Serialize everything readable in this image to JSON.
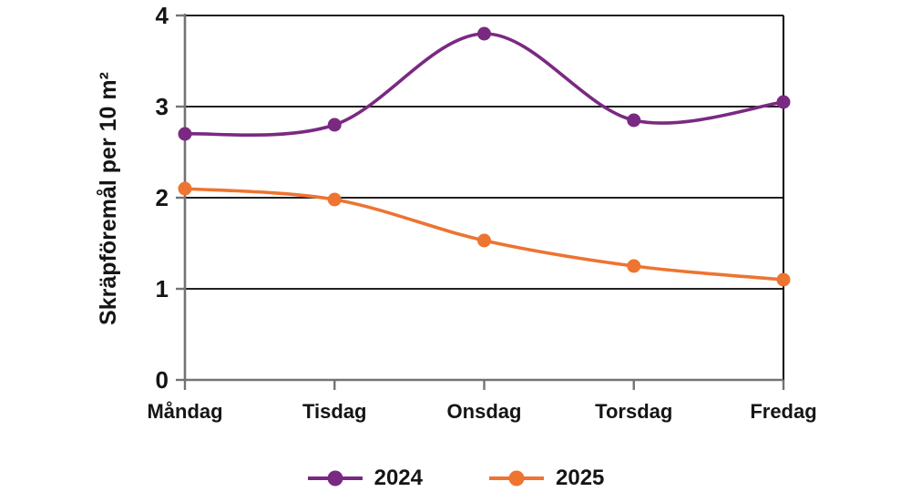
{
  "chart_data": {
    "type": "line",
    "categories": [
      "Måndag",
      "Tisdag",
      "Onsdag",
      "Torsdag",
      "Fredag"
    ],
    "series": [
      {
        "name": "2024",
        "color": "#7A2982",
        "values": [
          2.7,
          2.8,
          3.8,
          2.85,
          3.05
        ]
      },
      {
        "name": "2025",
        "color": "#ED7431",
        "values": [
          2.1,
          1.98,
          1.53,
          1.25,
          1.1
        ]
      }
    ],
    "title": "",
    "xlabel": "",
    "ylabel": "Skräpföremål per 10 m²",
    "ylim": [
      0,
      4
    ],
    "yticks": [
      0,
      1,
      2,
      3,
      4
    ],
    "grid": true,
    "smooth": true,
    "legend_position": "bottom",
    "marker": "circle"
  },
  "colors": {
    "background": "#ffffff",
    "gridline": "#000000",
    "axis": "#737373",
    "text": "#151515"
  }
}
